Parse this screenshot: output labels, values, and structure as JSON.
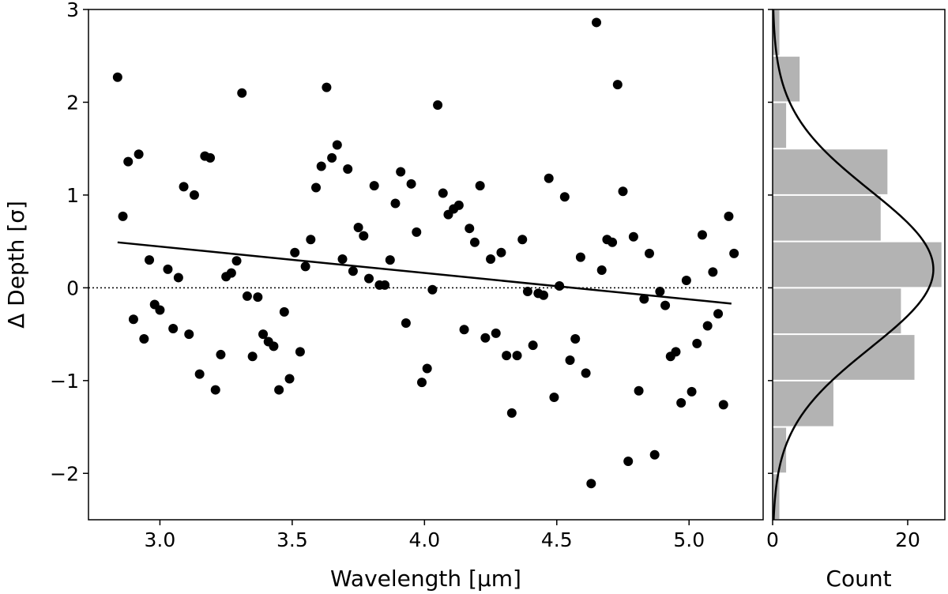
{
  "chart_data": [
    {
      "type": "scatter",
      "title": "",
      "xlabel": "Wavelength [μm]",
      "ylabel": "Δ Depth [σ]",
      "xlim": [
        2.73,
        5.28
      ],
      "ylim": [
        -2.5,
        3.0
      ],
      "xticks": [
        3.0,
        3.5,
        4.0,
        4.5,
        5.0
      ],
      "xtick_labels": [
        "3.0",
        "3.5",
        "4.0",
        "4.5",
        "5.0"
      ],
      "yticks": [
        -2,
        -1,
        0,
        1,
        2,
        3
      ],
      "ytick_labels": [
        "−2",
        "−1",
        "0",
        "1",
        "2",
        "3"
      ],
      "zero_line": 0,
      "fit_line": {
        "x": [
          2.84,
          5.16
        ],
        "y": [
          0.49,
          -0.17
        ]
      },
      "points": [
        [
          2.84,
          2.27
        ],
        [
          2.86,
          0.77
        ],
        [
          2.88,
          1.36
        ],
        [
          2.9,
          -0.34
        ],
        [
          2.92,
          1.44
        ],
        [
          2.94,
          -0.55
        ],
        [
          2.96,
          0.3
        ],
        [
          2.98,
          -0.18
        ],
        [
          3.0,
          -0.24
        ],
        [
          3.03,
          0.2
        ],
        [
          3.05,
          -0.44
        ],
        [
          3.07,
          0.11
        ],
        [
          3.09,
          1.09
        ],
        [
          3.11,
          -0.5
        ],
        [
          3.13,
          1.0
        ],
        [
          3.15,
          -0.93
        ],
        [
          3.17,
          1.42
        ],
        [
          3.19,
          1.4
        ],
        [
          3.21,
          -1.1
        ],
        [
          3.23,
          -0.72
        ],
        [
          3.25,
          0.12
        ],
        [
          3.27,
          0.16
        ],
        [
          3.29,
          0.29
        ],
        [
          3.31,
          2.1
        ],
        [
          3.33,
          -0.09
        ],
        [
          3.35,
          -0.74
        ],
        [
          3.37,
          -0.1
        ],
        [
          3.39,
          -0.5
        ],
        [
          3.41,
          -0.58
        ],
        [
          3.43,
          -0.63
        ],
        [
          3.45,
          -1.1
        ],
        [
          3.47,
          -0.26
        ],
        [
          3.49,
          -0.98
        ],
        [
          3.51,
          0.38
        ],
        [
          3.53,
          -0.69
        ],
        [
          3.55,
          0.23
        ],
        [
          3.57,
          0.52
        ],
        [
          3.59,
          1.08
        ],
        [
          3.61,
          1.31
        ],
        [
          3.63,
          2.16
        ],
        [
          3.65,
          1.4
        ],
        [
          3.67,
          1.54
        ],
        [
          3.69,
          0.31
        ],
        [
          3.71,
          1.28
        ],
        [
          3.73,
          0.18
        ],
        [
          3.75,
          0.65
        ],
        [
          3.77,
          0.56
        ],
        [
          3.79,
          0.1
        ],
        [
          3.81,
          1.1
        ],
        [
          3.83,
          0.03
        ],
        [
          3.85,
          0.03
        ],
        [
          3.87,
          0.3
        ],
        [
          3.89,
          0.91
        ],
        [
          3.91,
          1.25
        ],
        [
          3.93,
          -0.38
        ],
        [
          3.95,
          1.12
        ],
        [
          3.97,
          0.6
        ],
        [
          3.99,
          -1.02
        ],
        [
          4.01,
          -0.87
        ],
        [
          4.03,
          -0.02
        ],
        [
          4.05,
          1.97
        ],
        [
          4.07,
          1.02
        ],
        [
          4.09,
          0.79
        ],
        [
          4.11,
          0.85
        ],
        [
          4.13,
          0.89
        ],
        [
          4.15,
          -0.45
        ],
        [
          4.17,
          0.64
        ],
        [
          4.19,
          0.49
        ],
        [
          4.21,
          1.1
        ],
        [
          4.23,
          -0.54
        ],
        [
          4.25,
          0.31
        ],
        [
          4.27,
          -0.49
        ],
        [
          4.29,
          0.38
        ],
        [
          4.31,
          -0.73
        ],
        [
          4.33,
          -1.35
        ],
        [
          4.35,
          -0.73
        ],
        [
          4.37,
          0.52
        ],
        [
          4.39,
          -0.04
        ],
        [
          4.41,
          -0.62
        ],
        [
          4.43,
          -0.06
        ],
        [
          4.45,
          -0.08
        ],
        [
          4.47,
          1.18
        ],
        [
          4.49,
          -1.18
        ],
        [
          4.51,
          0.02
        ],
        [
          4.53,
          0.98
        ],
        [
          4.55,
          -0.78
        ],
        [
          4.57,
          -0.55
        ],
        [
          4.59,
          0.33
        ],
        [
          4.61,
          -0.92
        ],
        [
          4.63,
          -2.11
        ],
        [
          4.65,
          2.86
        ],
        [
          4.67,
          0.19
        ],
        [
          4.69,
          0.52
        ],
        [
          4.71,
          0.49
        ],
        [
          4.73,
          2.19
        ],
        [
          4.75,
          1.04
        ],
        [
          4.77,
          -1.87
        ],
        [
          4.79,
          0.55
        ],
        [
          4.81,
          -1.11
        ],
        [
          4.83,
          -0.12
        ],
        [
          4.85,
          0.37
        ],
        [
          4.87,
          -1.8
        ],
        [
          4.89,
          -0.04
        ],
        [
          4.91,
          -0.19
        ],
        [
          4.93,
          -0.74
        ],
        [
          4.95,
          -0.69
        ],
        [
          4.97,
          -1.24
        ],
        [
          4.99,
          0.08
        ],
        [
          5.01,
          -1.12
        ],
        [
          5.03,
          -0.6
        ],
        [
          5.05,
          0.57
        ],
        [
          5.07,
          -0.41
        ],
        [
          5.09,
          0.17
        ],
        [
          5.11,
          -0.28
        ],
        [
          5.13,
          -1.26
        ],
        [
          5.15,
          0.77
        ],
        [
          5.17,
          0.37
        ]
      ]
    },
    {
      "type": "bar",
      "orientation": "horizontal",
      "title": "",
      "xlabel": "Count",
      "ylabel": "",
      "xlim": [
        0,
        25.5
      ],
      "ylim": [
        -2.5,
        3.0
      ],
      "xticks": [
        0,
        20
      ],
      "xtick_labels": [
        "0",
        "20"
      ],
      "yticks": [
        -2,
        -1,
        0,
        1,
        2,
        3
      ],
      "bin_edges": [
        -2.5,
        -2.0,
        -1.5,
        -1.0,
        -0.5,
        0.0,
        0.5,
        1.0,
        1.5,
        2.0,
        2.5,
        3.0
      ],
      "counts": [
        1,
        2,
        9,
        21,
        19,
        25,
        16,
        17,
        2,
        4,
        1
      ],
      "gaussian_curve": {
        "mean": 0.2,
        "sigma": 0.85,
        "peak_count": 23.8
      }
    }
  ]
}
